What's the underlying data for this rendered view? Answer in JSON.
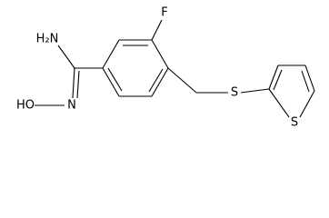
{
  "atoms": {
    "fluorine": "F",
    "amine": "H₂N",
    "hydroxyl": "HO",
    "imine_nitrogen": "N",
    "thioether_sulfur": "S",
    "thiophene_sulfur": "S"
  }
}
